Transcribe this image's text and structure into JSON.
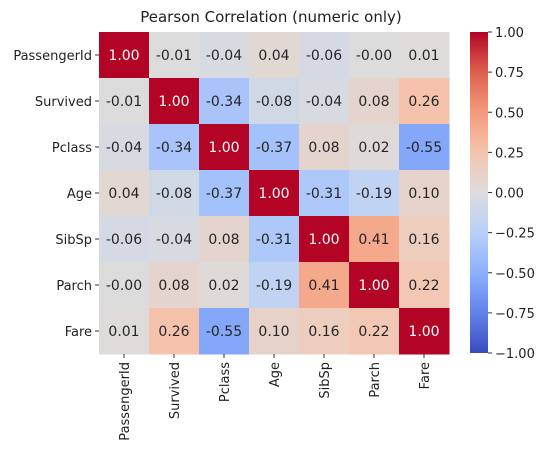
{
  "chart_data": {
    "type": "heatmap",
    "title": "Pearson Correlation (numeric only)",
    "row_labels": [
      "PassengerId",
      "Survived",
      "Pclass",
      "Age",
      "SibSp",
      "Parch",
      "Fare"
    ],
    "col_labels": [
      "PassengerId",
      "Survived",
      "Pclass",
      "Age",
      "SibSp",
      "Parch",
      "Fare"
    ],
    "values": [
      [
        1.0,
        -0.01,
        -0.04,
        0.04,
        -0.06,
        -0.0,
        0.01
      ],
      [
        -0.01,
        1.0,
        -0.34,
        -0.08,
        -0.04,
        0.08,
        0.26
      ],
      [
        -0.04,
        -0.34,
        1.0,
        -0.37,
        0.08,
        0.02,
        -0.55
      ],
      [
        0.04,
        -0.08,
        -0.37,
        1.0,
        -0.31,
        -0.19,
        0.1
      ],
      [
        -0.06,
        -0.04,
        0.08,
        -0.31,
        1.0,
        0.41,
        0.16
      ],
      [
        -0.0,
        0.08,
        0.02,
        -0.19,
        0.41,
        1.0,
        0.22
      ],
      [
        0.01,
        0.26,
        -0.55,
        0.1,
        0.16,
        0.22,
        1.0
      ]
    ],
    "value_labels": [
      [
        "1.00",
        "-0.01",
        "-0.04",
        "0.04",
        "-0.06",
        "-0.00",
        "0.01"
      ],
      [
        "-0.01",
        "1.00",
        "-0.34",
        "-0.08",
        "-0.04",
        "0.08",
        "0.26"
      ],
      [
        "-0.04",
        "-0.34",
        "1.00",
        "-0.37",
        "0.08",
        "0.02",
        "-0.55"
      ],
      [
        "0.04",
        "-0.08",
        "-0.37",
        "1.00",
        "-0.31",
        "-0.19",
        "0.10"
      ],
      [
        "-0.06",
        "-0.04",
        "0.08",
        "-0.31",
        "1.00",
        "0.41",
        "0.16"
      ],
      [
        "-0.00",
        "0.08",
        "0.02",
        "-0.19",
        "0.41",
        "1.00",
        "0.22"
      ],
      [
        "0.01",
        "0.26",
        "-0.55",
        "0.10",
        "0.16",
        "0.22",
        "1.00"
      ]
    ],
    "colormap": "coolwarm",
    "vmin": -1.0,
    "vmax": 1.0,
    "colorbar_ticks": [
      1.0,
      0.75,
      0.5,
      0.25,
      0.0,
      -0.25,
      -0.5,
      -0.75,
      -1.0
    ],
    "colorbar_tick_labels": [
      "1.00",
      "0.75",
      "0.50",
      "0.25",
      "0.00",
      "−0.25",
      "−0.50",
      "−0.75",
      "−1.00"
    ],
    "colors": {
      "cold": "#3b4cc0",
      "neutral": "#dddcdc",
      "warm": "#b40426"
    }
  }
}
